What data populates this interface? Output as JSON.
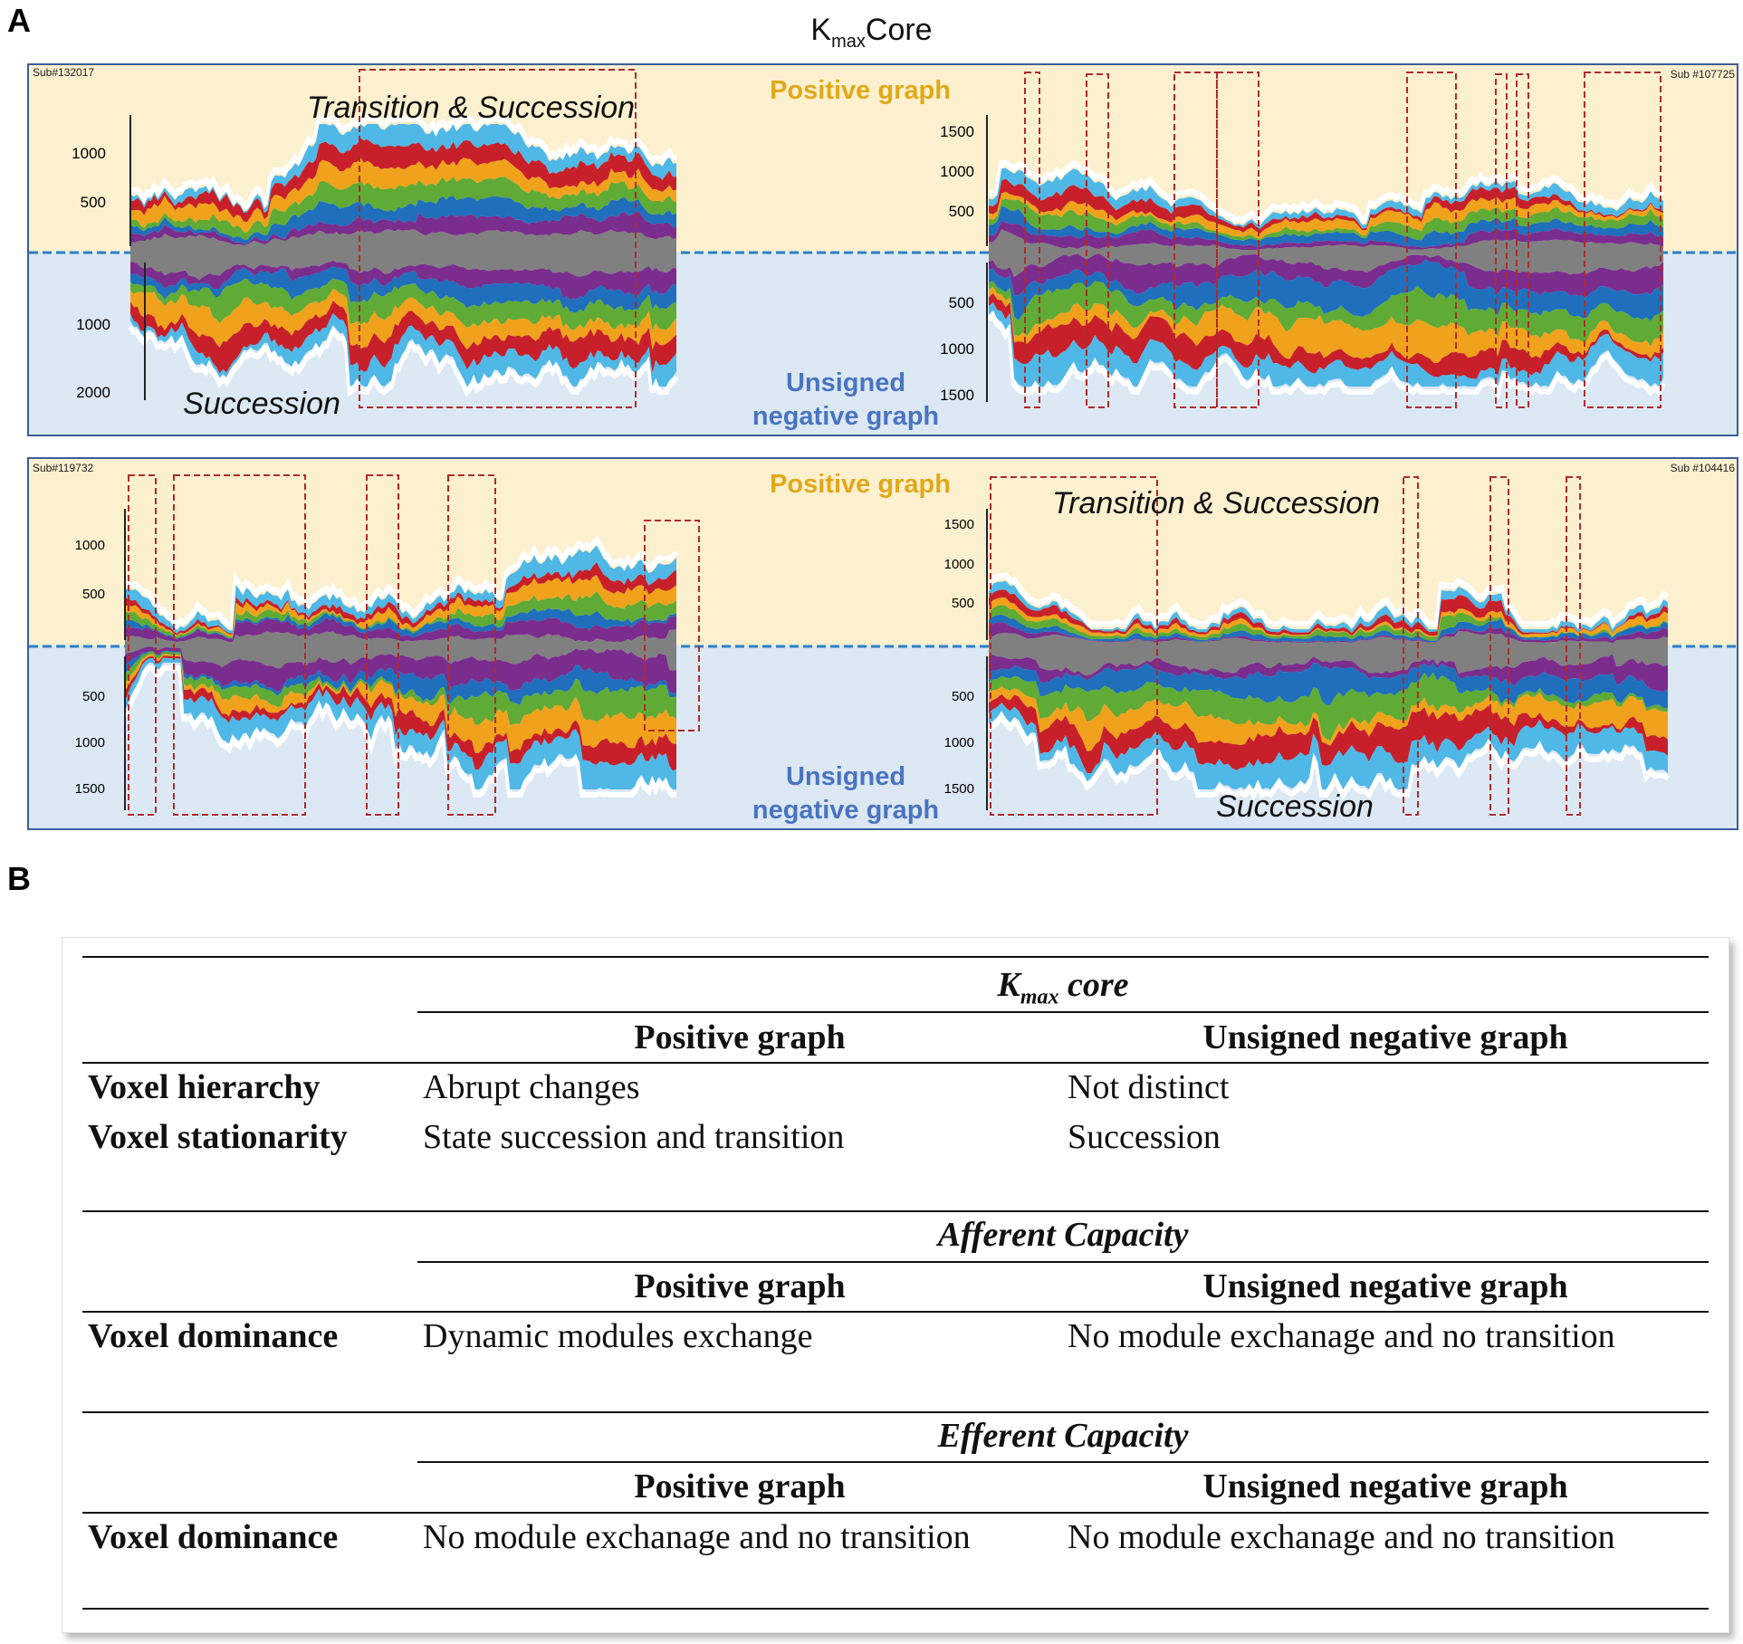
{
  "panel_a": {
    "letter": "A",
    "title_main": "K",
    "title_sub": "max",
    "title_end": "Core",
    "chart_data": [
      {
        "type": "area",
        "subject": "Sub#132017",
        "positive_label": "Positive graph",
        "negative_label_line1": "Unsigned",
        "negative_label_line2": "negative graph",
        "annotations": [
          "Transition & Succession",
          "Succession"
        ],
        "positive_ticks": [
          "1000",
          "500"
        ],
        "negative_ticks": [
          "1000",
          "2000"
        ],
        "positive_ylim": [
          0,
          1300
        ],
        "negative_ylim": [
          0,
          2100
        ]
      },
      {
        "type": "area",
        "subject": "Sub #107725",
        "positive_ticks": [
          "1500",
          "1000",
          "500"
        ],
        "negative_ticks": [
          "500",
          "1000",
          "1500"
        ],
        "positive_ylim": [
          0,
          1800
        ],
        "negative_ylim": [
          0,
          1700
        ]
      },
      {
        "type": "area",
        "subject": "Sub#119732",
        "positive_label": "Positive graph",
        "negative_label_line1": "Unsigned",
        "negative_label_line2": "negative graph",
        "positive_ticks": [
          "1000",
          "500"
        ],
        "negative_ticks": [
          "500",
          "1000",
          "1500"
        ],
        "positive_ylim": [
          0,
          1350
        ],
        "negative_ylim": [
          0,
          1750
        ]
      },
      {
        "type": "area",
        "subject": "Sub #104416",
        "annotations": [
          "Transition & Succession",
          "Succession"
        ],
        "positive_ticks": [
          "1500",
          "1000",
          "500"
        ],
        "negative_ticks": [
          "500",
          "1000",
          "1500"
        ],
        "positive_ylim": [
          0,
          1750
        ],
        "negative_ylim": [
          0,
          1750
        ]
      }
    ],
    "colors": {
      "purple": "#7b2d8e",
      "gray": "#808080",
      "orange": "#f0a21c",
      "red": "#c8202a",
      "blue": "#1f6fbd",
      "green": "#5fab36",
      "lightblue": "#4fb8e6",
      "positive_bg": "#fdf0cf",
      "negative_bg": "#dce8f4",
      "positive_label": "#e0a91a",
      "negative_label": "#4a74c0",
      "dashed_box": "#b02a2a"
    }
  },
  "panel_b": {
    "letter": "B",
    "sections": [
      {
        "title_main": "K",
        "title_sub": "max",
        "title_end": " core",
        "col1": "Positive graph",
        "col2": "Unsigned negative graph",
        "rows": [
          {
            "label": "Voxel hierarchy",
            "positive": "Abrupt changes",
            "negative": "Not distinct"
          },
          {
            "label": "Voxel stationarity",
            "positive": "State succession and transition",
            "negative": "Succession"
          }
        ]
      },
      {
        "title": "Afferent Capacity",
        "col1": "Positive graph",
        "col2": "Unsigned negative graph",
        "rows": [
          {
            "label": "Voxel dominance",
            "positive": "Dynamic modules exchange",
            "negative": "No module exchanage and no transition"
          }
        ]
      },
      {
        "title": "Efferent Capacity",
        "col1": "Positive graph",
        "col2": "Unsigned negative graph",
        "rows": [
          {
            "label": "Voxel dominance",
            "positive": "No module exchanage and no transition",
            "negative": "No module exchanage and no transition"
          }
        ]
      }
    ]
  }
}
